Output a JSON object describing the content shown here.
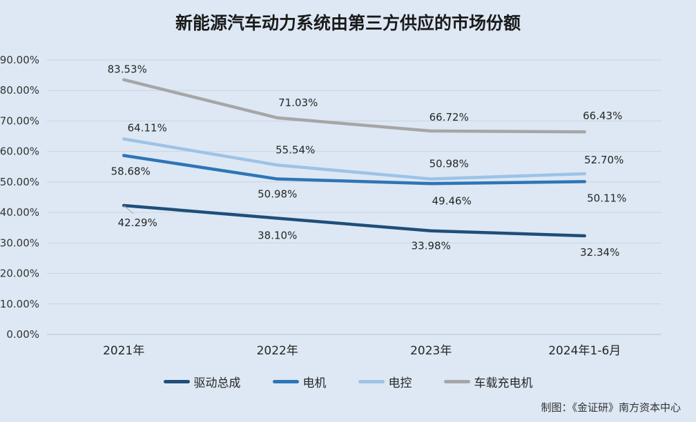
{
  "chart_data": {
    "type": "line",
    "title": "新能源汽车动力系统由第三方供应的市场份额",
    "categories": [
      "2021年",
      "2022年",
      "2023年",
      "2024年1-6月"
    ],
    "y_ticks": [
      "0.00%",
      "10.00%",
      "20.00%",
      "30.00%",
      "40.00%",
      "50.00%",
      "60.00%",
      "70.00%",
      "80.00%",
      "90.00%"
    ],
    "ylim": [
      0,
      90
    ],
    "grid": true,
    "legend_position": "bottom",
    "series": [
      {
        "name": "驱动总成",
        "color": "#1f4e79",
        "values": [
          42.29,
          38.1,
          33.98,
          32.34
        ],
        "labels": [
          "42.29%",
          "38.10%",
          "33.98%",
          "32.34%"
        ]
      },
      {
        "name": "电机",
        "color": "#2e75b6",
        "values": [
          58.68,
          50.98,
          49.46,
          50.11
        ],
        "labels": [
          "58.68%",
          "50.98%",
          "49.46%",
          "50.11%"
        ]
      },
      {
        "name": "电控",
        "color": "#9dc3e6",
        "values": [
          64.11,
          55.54,
          50.98,
          52.7
        ],
        "labels": [
          "64.11%",
          "55.54%",
          "50.98%",
          "52.70%"
        ]
      },
      {
        "name": "车载充电机",
        "color": "#a6a6a6",
        "values": [
          83.53,
          71.03,
          66.72,
          66.43
        ],
        "labels": [
          "83.53%",
          "71.03%",
          "66.72%",
          "66.43%"
        ]
      }
    ]
  },
  "source": "制图：《金证研》南方资本中心"
}
